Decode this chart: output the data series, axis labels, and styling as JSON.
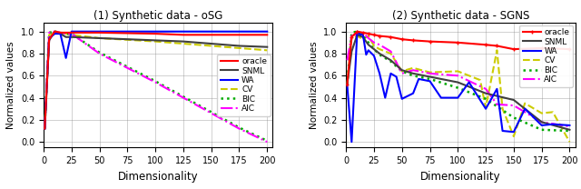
{
  "plot1": {
    "title": "(1) Synthetic data - oSG",
    "xlabel": "Dimensionality",
    "ylabel": "Normalized values",
    "xlim": [
      0,
      205
    ],
    "ylim": [
      -0.05,
      1.08
    ],
    "xticks": [
      0,
      25,
      50,
      75,
      100,
      125,
      150,
      175,
      200
    ],
    "yticks": [
      0.0,
      0.2,
      0.4,
      0.6,
      0.8,
      1.0
    ],
    "legend_loc": "center right",
    "series": {
      "oracle": {
        "x": [
          1,
          5,
          10,
          15,
          20,
          25,
          50,
          100,
          125,
          150,
          175,
          200
        ],
        "y": [
          0.12,
          0.93,
          1.0,
          0.99,
          0.99,
          0.99,
          0.99,
          0.98,
          0.97,
          0.97,
          0.97,
          0.97
        ],
        "color": "#ff0000",
        "linestyle": "-",
        "linewidth": 1.5,
        "marker": null,
        "zorder": 5
      },
      "SNML": {
        "x": [
          1,
          5,
          10,
          15,
          20,
          25,
          50,
          100,
          125,
          150,
          175,
          200
        ],
        "y": [
          0.12,
          0.92,
          1.0,
          0.98,
          0.95,
          0.95,
          0.94,
          0.92,
          0.91,
          0.89,
          0.87,
          0.86
        ],
        "color": "#404040",
        "linestyle": "-",
        "linewidth": 1.5,
        "marker": null,
        "zorder": 4
      },
      "WA": {
        "x": [
          1,
          5,
          10,
          15,
          20,
          25,
          50,
          100,
          125,
          150,
          175,
          200
        ],
        "y": [
          0.12,
          0.94,
          0.98,
          0.98,
          0.76,
          1.0,
          1.0,
          1.0,
          1.0,
          1.0,
          1.0,
          1.0
        ],
        "color": "#0000ff",
        "linestyle": "-",
        "linewidth": 1.5,
        "marker": null,
        "zorder": 4
      },
      "CV": {
        "x": [
          1,
          5,
          10,
          15,
          20,
          25,
          50,
          100,
          125,
          150,
          175,
          200
        ],
        "y": [
          0.12,
          0.97,
          1.0,
          0.99,
          0.98,
          0.97,
          0.94,
          0.91,
          0.89,
          0.87,
          0.85,
          0.83
        ],
        "color": "#cccc00",
        "linestyle": "--",
        "linewidth": 1.5,
        "marker": null,
        "zorder": 3
      },
      "BIC": {
        "x": [
          1,
          5,
          10,
          15,
          20,
          25,
          50,
          100,
          125,
          150,
          175,
          200
        ],
        "y": [
          0.12,
          0.99,
          1.0,
          0.99,
          0.98,
          0.98,
          0.81,
          0.55,
          0.41,
          0.27,
          0.13,
          0.01
        ],
        "color": "#00aa00",
        "linestyle": ":",
        "linewidth": 1.8,
        "marker": null,
        "zorder": 3
      },
      "AIC": {
        "x": [
          1,
          5,
          10,
          15,
          20,
          25,
          50,
          100,
          125,
          150,
          175,
          200
        ],
        "y": [
          0.12,
          0.99,
          1.0,
          0.99,
          0.98,
          0.98,
          0.8,
          0.54,
          0.4,
          0.26,
          0.12,
          0.0
        ],
        "color": "#ff00ff",
        "linestyle": "-.",
        "linewidth": 1.5,
        "marker": null,
        "zorder": 3
      }
    }
  },
  "plot2": {
    "title": "(2) Synthetic data - SGNS",
    "xlabel": "Dimensionality",
    "ylabel": "Normalized values",
    "xlim": [
      0,
      205
    ],
    "ylim": [
      -0.05,
      1.08
    ],
    "xticks": [
      0,
      25,
      50,
      75,
      100,
      125,
      150,
      175,
      200
    ],
    "yticks": [
      0.0,
      0.2,
      0.4,
      0.6,
      0.8,
      1.0
    ],
    "legend_loc": "upper right",
    "series": {
      "oracle": {
        "x": [
          1,
          5,
          10,
          15,
          20,
          25,
          30,
          40,
          50,
          60,
          75,
          100,
          125,
          135,
          150,
          175,
          200
        ],
        "y": [
          0.52,
          0.95,
          1.0,
          0.99,
          0.98,
          0.97,
          0.96,
          0.95,
          0.93,
          0.92,
          0.91,
          0.9,
          0.88,
          0.87,
          0.84,
          0.85,
          0.84
        ],
        "color": "#ff0000",
        "linestyle": "-",
        "linewidth": 1.5,
        "marker": "+",
        "markersize": 3,
        "zorder": 5
      },
      "SNML": {
        "x": [
          1,
          5,
          10,
          15,
          20,
          25,
          30,
          40,
          50,
          60,
          75,
          100,
          125,
          150,
          175,
          200
        ],
        "y": [
          0.52,
          0.82,
          0.97,
          0.95,
          0.88,
          0.84,
          0.8,
          0.74,
          0.65,
          0.62,
          0.59,
          0.54,
          0.44,
          0.38,
          0.18,
          0.11
        ],
        "color": "#404040",
        "linestyle": "-",
        "linewidth": 1.5,
        "marker": null,
        "zorder": 4
      },
      "WA": {
        "x": [
          1,
          5,
          10,
          13,
          15,
          18,
          20,
          25,
          30,
          35,
          40,
          45,
          50,
          60,
          65,
          75,
          85,
          100,
          110,
          125,
          135,
          140,
          150,
          160,
          175,
          185,
          200
        ],
        "y": [
          0.52,
          0.0,
          1.0,
          0.97,
          0.98,
          0.79,
          0.83,
          0.78,
          0.62,
          0.4,
          0.62,
          0.59,
          0.39,
          0.44,
          0.57,
          0.55,
          0.4,
          0.4,
          0.54,
          0.3,
          0.48,
          0.1,
          0.09,
          0.3,
          0.15,
          0.16,
          0.15
        ],
        "color": "#0000ff",
        "linestyle": "-",
        "linewidth": 1.5,
        "marker": null,
        "zorder": 4
      },
      "CV": {
        "x": [
          1,
          5,
          10,
          15,
          20,
          25,
          30,
          40,
          50,
          60,
          75,
          100,
          120,
          125,
          135,
          140,
          150,
          160,
          175,
          185,
          200
        ],
        "y": [
          0.52,
          0.94,
          0.96,
          0.93,
          0.96,
          0.87,
          0.84,
          0.8,
          0.64,
          0.67,
          0.63,
          0.64,
          0.56,
          0.31,
          0.83,
          0.3,
          0.05,
          0.35,
          0.26,
          0.27,
          0.0
        ],
        "color": "#cccc00",
        "linestyle": "--",
        "linewidth": 1.5,
        "marker": null,
        "zorder": 3
      },
      "BIC": {
        "x": [
          1,
          5,
          10,
          15,
          20,
          25,
          30,
          40,
          50,
          60,
          75,
          100,
          125,
          150,
          175,
          200
        ],
        "y": [
          0.52,
          0.99,
          1.0,
          0.96,
          0.9,
          0.84,
          0.79,
          0.73,
          0.64,
          0.6,
          0.57,
          0.49,
          0.39,
          0.22,
          0.11,
          0.1
        ],
        "color": "#00aa00",
        "linestyle": ":",
        "linewidth": 1.8,
        "marker": null,
        "zorder": 3
      },
      "AIC": {
        "x": [
          1,
          5,
          10,
          15,
          20,
          25,
          30,
          40,
          50,
          60,
          75,
          100,
          125,
          135,
          150,
          175,
          200
        ],
        "y": [
          0.74,
          0.96,
          0.98,
          0.99,
          0.94,
          0.9,
          0.88,
          0.82,
          0.62,
          0.65,
          0.62,
          0.6,
          0.48,
          0.34,
          0.33,
          0.18,
          0.14
        ],
        "color": "#ff00ff",
        "linestyle": "-.",
        "linewidth": 1.5,
        "marker": null,
        "zorder": 3
      }
    }
  },
  "legend_order": [
    "oracle",
    "SNML",
    "WA",
    "CV",
    "BIC",
    "AIC"
  ],
  "legend_labels": {
    "oracle": "oracle",
    "SNML": "SNML",
    "WA": "WA",
    "CV": "CV",
    "BIC": "BIC",
    "AIC": "AIC"
  }
}
